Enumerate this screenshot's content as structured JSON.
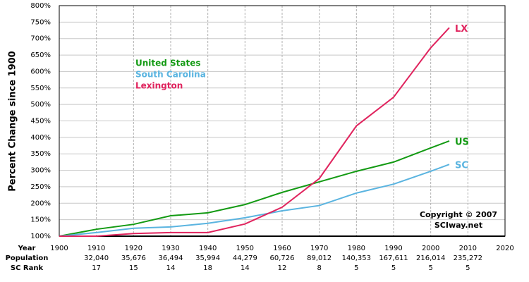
{
  "chart_data": {
    "type": "line",
    "y_label": "Percent Change since 1900",
    "x": [
      1900,
      1910,
      1920,
      1930,
      1940,
      1950,
      1960,
      1970,
      1980,
      1990,
      2000,
      2005
    ],
    "series": [
      {
        "name": "United States",
        "end_label": "US",
        "color": "#139a13",
        "values": [
          100,
          121,
          136,
          162,
          171,
          196,
          233,
          265,
          297,
          325,
          368,
          389
        ]
      },
      {
        "name": "South Carolina",
        "end_label": "SC",
        "color": "#5ab4e0",
        "values": [
          100,
          111,
          124,
          128,
          139,
          156,
          177,
          193,
          231,
          258,
          297,
          318
        ]
      },
      {
        "name": "Lexington",
        "end_label": "LX",
        "color": "#e0245e",
        "values": [
          100,
          100,
          108,
          111,
          111,
          137,
          188,
          275,
          435,
          522,
          672,
          733
        ]
      }
    ],
    "xlim": [
      1900,
      2020
    ],
    "xticks": [
      1900,
      1910,
      1920,
      1930,
      1940,
      1950,
      1960,
      1970,
      1980,
      1990,
      2000,
      2010,
      2020
    ],
    "ylim": [
      100,
      800
    ],
    "yticks": [
      {
        "value": 100,
        "label": "100%"
      },
      {
        "value": 150,
        "label": "150%"
      },
      {
        "value": 200,
        "label": "200%"
      },
      {
        "value": 250,
        "label": "250%"
      },
      {
        "value": 300,
        "label": "300%"
      },
      {
        "value": 350,
        "label": "350%"
      },
      {
        "value": 400,
        "label": "400%"
      },
      {
        "value": 450,
        "label": "450%"
      },
      {
        "value": 500,
        "label": "500%"
      },
      {
        "value": 550,
        "label": "550%"
      },
      {
        "value": 600,
        "label": "600%"
      },
      {
        "value": 650,
        "label": "650%"
      },
      {
        "value": 700,
        "label": "700%"
      },
      {
        "value": 750,
        "label": "750%"
      },
      {
        "value": 800,
        "label": "800%"
      }
    ],
    "grid": true,
    "x_row_label": "Year",
    "table_rows": [
      {
        "label": "Population",
        "cells": [
          {
            "x": 1910,
            "text": "32,040"
          },
          {
            "x": 1920,
            "text": "35,676"
          },
          {
            "x": 1930,
            "text": "36,494"
          },
          {
            "x": 1940,
            "text": "35,994"
          },
          {
            "x": 1950,
            "text": "44,279"
          },
          {
            "x": 1960,
            "text": "60,726"
          },
          {
            "x": 1970,
            "text": "89,012"
          },
          {
            "x": 1980,
            "text": "140,353"
          },
          {
            "x": 1990,
            "text": "167,611"
          },
          {
            "x": 2000,
            "text": "216,014"
          },
          {
            "x": 2010,
            "text": "235,272"
          }
        ]
      },
      {
        "label": "SC Rank",
        "cells": [
          {
            "x": 1910,
            "text": "17"
          },
          {
            "x": 1920,
            "text": "15"
          },
          {
            "x": 1930,
            "text": "14"
          },
          {
            "x": 1940,
            "text": "18"
          },
          {
            "x": 1950,
            "text": "14"
          },
          {
            "x": 1960,
            "text": "12"
          },
          {
            "x": 1970,
            "text": "8"
          },
          {
            "x": 1980,
            "text": "5"
          },
          {
            "x": 1990,
            "text": "5"
          },
          {
            "x": 2000,
            "text": "5"
          },
          {
            "x": 2010,
            "text": "5"
          }
        ]
      }
    ],
    "credit": [
      "Copyright © 2007",
      "SCIway.net"
    ]
  }
}
